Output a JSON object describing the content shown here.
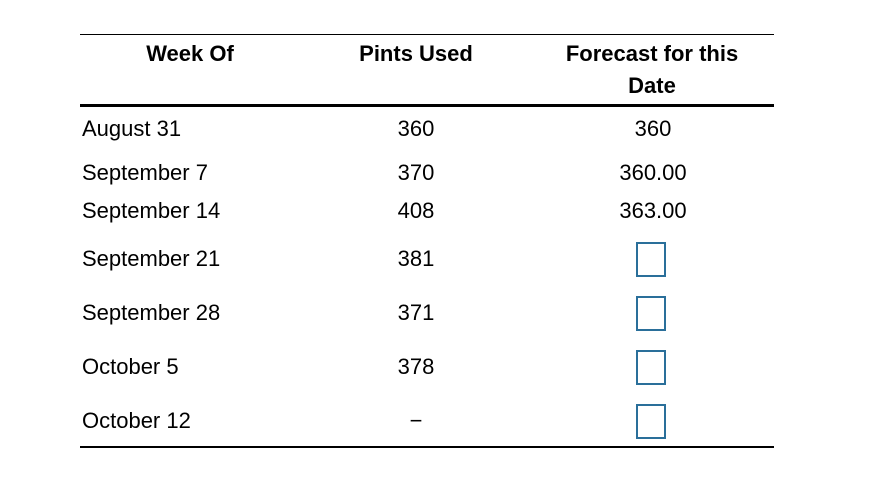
{
  "table": {
    "headers": {
      "week": "Week Of",
      "pints": "Pints Used",
      "forecast_line1": "Forecast for this",
      "forecast_line2": "Date"
    },
    "rows": [
      {
        "week": "August 31",
        "pints": "360",
        "forecast": "360"
      },
      {
        "week": "September 7",
        "pints": "370",
        "forecast": "360.00"
      },
      {
        "week": "September 14",
        "pints": "408",
        "forecast": "363.00"
      },
      {
        "week": "September 21",
        "pints": "381",
        "forecast": ""
      },
      {
        "week": "September 28",
        "pints": "371",
        "forecast": ""
      },
      {
        "week": "October 5",
        "pints": "378",
        "forecast": ""
      },
      {
        "week": "October 12",
        "pints": "−",
        "forecast": ""
      }
    ]
  },
  "colors": {
    "rule": "#000000",
    "input_border": "#2a6f9a"
  }
}
